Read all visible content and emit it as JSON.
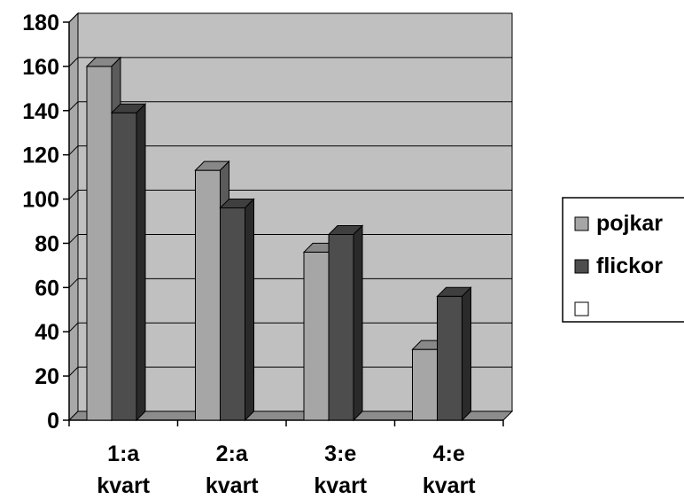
{
  "chart_data": {
    "type": "bar",
    "categories": [
      [
        "1:a",
        "kvart"
      ],
      [
        "2:a",
        "kvart"
      ],
      [
        "3:e",
        "kvart"
      ],
      [
        "4:e",
        "kvart"
      ]
    ],
    "series": [
      {
        "name": "pojkar",
        "values": [
          160,
          113,
          76,
          32
        ],
        "color": "#a6a6a6"
      },
      {
        "name": "flickor",
        "values": [
          139,
          96,
          84,
          56
        ],
        "color": "#4d4d4d"
      },
      {
        "name": "",
        "values": [
          0,
          0,
          0,
          0
        ],
        "color": "#ffffff"
      }
    ],
    "ylim": [
      0,
      180
    ],
    "yticks": [
      0,
      20,
      40,
      60,
      80,
      100,
      120,
      140,
      160,
      180
    ],
    "grid": true,
    "legend_position": "right",
    "style": "3d-clustered-column",
    "colors": {
      "wall": "#c0c0c0",
      "wall_side": "#a8a8a8",
      "floor": "#8c8c8c",
      "gridline": "#000000"
    }
  }
}
